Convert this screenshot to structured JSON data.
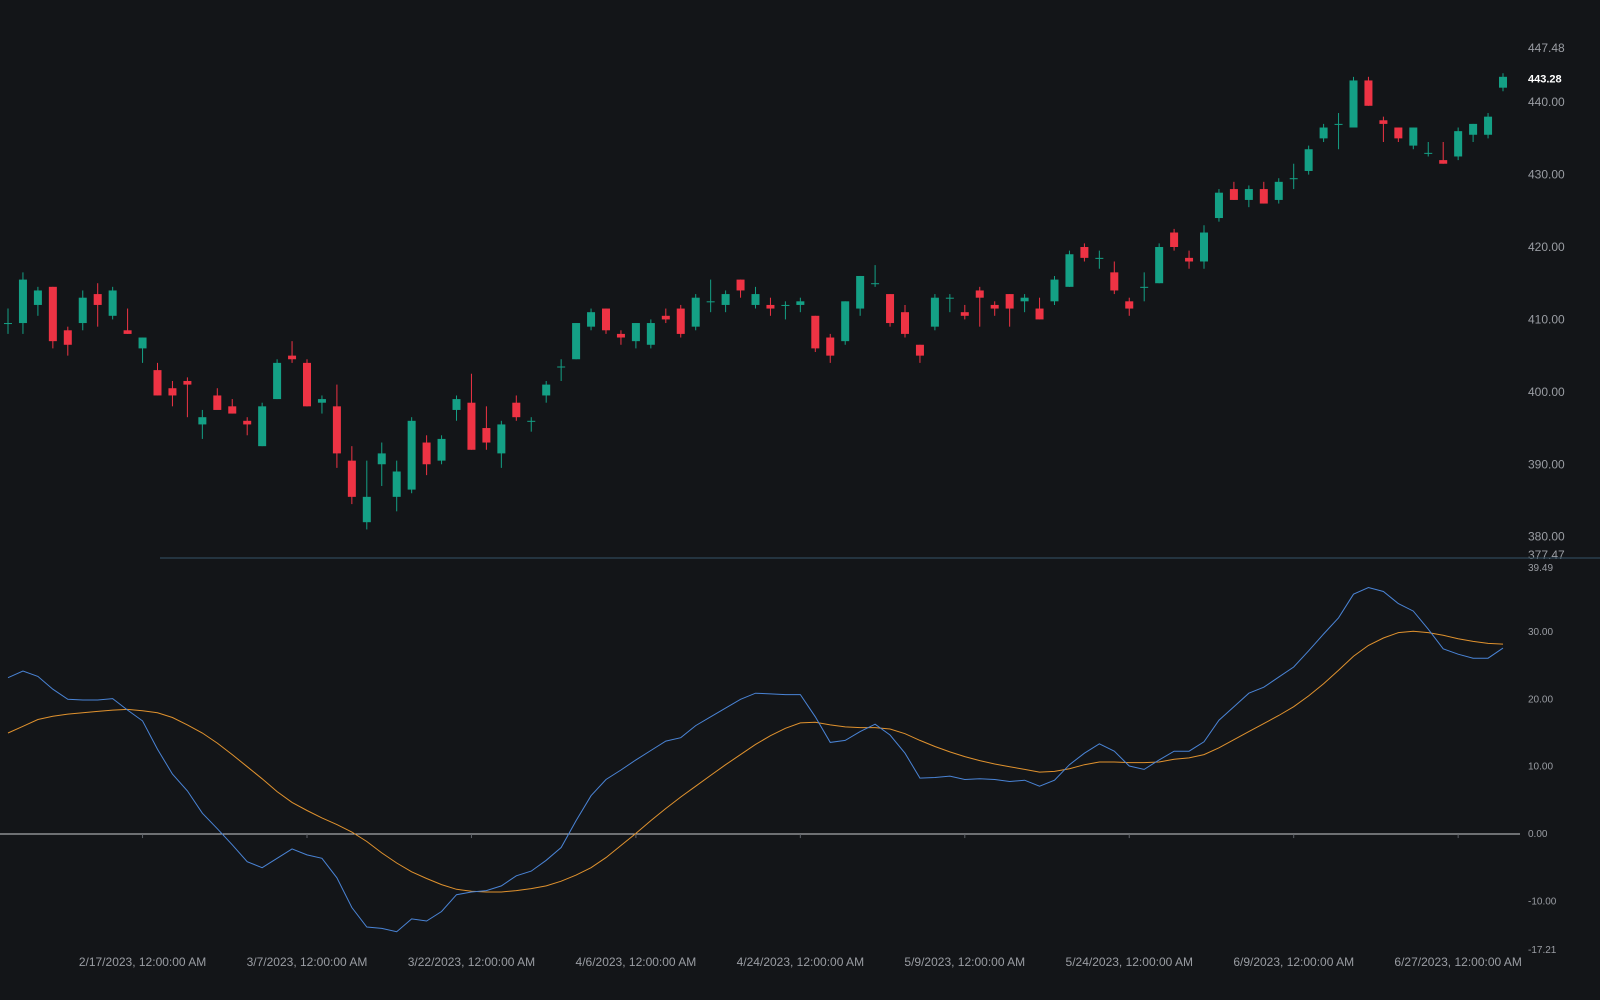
{
  "colors": {
    "background": "#131518",
    "up": "#14a085",
    "down": "#ee3344",
    "macd_line": "#4a84d6",
    "signal_line": "#e0922e",
    "zero_line": "#c9cbce",
    "axis_text": "#9a9da3",
    "last_price_text": "#ffffff",
    "pane_separator": "#2f4858"
  },
  "chart_data": [
    {
      "type": "candlestick",
      "pane": "price",
      "axis_side": "right",
      "ylim": [
        377.47,
        447.48
      ],
      "y_tick_labels": [
        "447.48",
        "440.00",
        "430.00",
        "420.00",
        "410.00",
        "400.00",
        "390.00",
        "380.00",
        "377.47"
      ],
      "y_ticks": [
        447.48,
        440,
        430,
        420,
        410,
        400,
        390,
        380,
        377.47
      ],
      "last_price": 443.28,
      "last_price_label": "443.28",
      "candles": [
        {
          "o": 409.5,
          "h": 411.5,
          "l": 408.0,
          "c": 409.5
        },
        {
          "o": 409.5,
          "h": 416.5,
          "l": 408.0,
          "c": 415.5
        },
        {
          "o": 412.0,
          "h": 414.5,
          "l": 410.5,
          "c": 414.0
        },
        {
          "o": 414.5,
          "h": 414.5,
          "l": 406.0,
          "c": 407.0
        },
        {
          "o": 408.5,
          "h": 409.0,
          "l": 405.0,
          "c": 406.5
        },
        {
          "o": 409.5,
          "h": 414.0,
          "l": 408.5,
          "c": 413.0
        },
        {
          "o": 413.5,
          "h": 415.0,
          "l": 409.0,
          "c": 412.0
        },
        {
          "o": 410.5,
          "h": 414.5,
          "l": 410.0,
          "c": 414.0
        },
        {
          "o": 408.5,
          "h": 411.5,
          "l": 408.0,
          "c": 408.0
        },
        {
          "o": 406.0,
          "h": 407.5,
          "l": 404.0,
          "c": 407.5
        },
        {
          "o": 403.0,
          "h": 404.0,
          "l": 399.5,
          "c": 399.5
        },
        {
          "o": 400.5,
          "h": 401.5,
          "l": 398.0,
          "c": 399.5
        },
        {
          "o": 401.5,
          "h": 402.0,
          "l": 396.5,
          "c": 401.0
        },
        {
          "o": 395.5,
          "h": 397.5,
          "l": 393.5,
          "c": 396.5
        },
        {
          "o": 399.5,
          "h": 400.5,
          "l": 398.0,
          "c": 397.5
        },
        {
          "o": 398.0,
          "h": 399.0,
          "l": 397.0,
          "c": 397.0
        },
        {
          "o": 396.0,
          "h": 396.5,
          "l": 394.0,
          "c": 395.5
        },
        {
          "o": 392.5,
          "h": 398.5,
          "l": 392.5,
          "c": 398.0
        },
        {
          "o": 399.0,
          "h": 404.5,
          "l": 399.0,
          "c": 404.0
        },
        {
          "o": 405.0,
          "h": 407.0,
          "l": 404.0,
          "c": 404.5
        },
        {
          "o": 404.0,
          "h": 404.5,
          "l": 398.0,
          "c": 398.0
        },
        {
          "o": 398.5,
          "h": 399.5,
          "l": 397.0,
          "c": 399.0
        },
        {
          "o": 398.0,
          "h": 401.0,
          "l": 389.5,
          "c": 391.5
        },
        {
          "o": 390.5,
          "h": 392.5,
          "l": 384.5,
          "c": 385.5
        },
        {
          "o": 382.0,
          "h": 390.5,
          "l": 381.0,
          "c": 385.5
        },
        {
          "o": 390.0,
          "h": 393.0,
          "l": 387.0,
          "c": 391.5
        },
        {
          "o": 385.5,
          "h": 390.5,
          "l": 383.5,
          "c": 389.0
        },
        {
          "o": 386.5,
          "h": 396.5,
          "l": 386.0,
          "c": 396.0
        },
        {
          "o": 393.0,
          "h": 394.0,
          "l": 388.5,
          "c": 390.0
        },
        {
          "o": 390.5,
          "h": 394.0,
          "l": 390.0,
          "c": 393.5
        },
        {
          "o": 397.5,
          "h": 399.5,
          "l": 396.0,
          "c": 399.0
        },
        {
          "o": 398.5,
          "h": 402.5,
          "l": 392.0,
          "c": 392.0
        },
        {
          "o": 395.0,
          "h": 398.0,
          "l": 392.0,
          "c": 393.0
        },
        {
          "o": 391.5,
          "h": 396.0,
          "l": 389.5,
          "c": 395.5
        },
        {
          "o": 398.5,
          "h": 399.5,
          "l": 396.0,
          "c": 396.5
        },
        {
          "o": 396.0,
          "h": 396.5,
          "l": 394.5,
          "c": 396.0
        },
        {
          "o": 399.5,
          "h": 401.5,
          "l": 398.5,
          "c": 401.0
        },
        {
          "o": 403.5,
          "h": 404.5,
          "l": 401.5,
          "c": 403.5
        },
        {
          "o": 404.5,
          "h": 409.5,
          "l": 404.5,
          "c": 409.5
        },
        {
          "o": 409.0,
          "h": 411.5,
          "l": 408.5,
          "c": 411.0
        },
        {
          "o": 411.5,
          "h": 411.5,
          "l": 408.0,
          "c": 408.5
        },
        {
          "o": 408.0,
          "h": 408.5,
          "l": 406.5,
          "c": 407.5
        },
        {
          "o": 407.0,
          "h": 409.5,
          "l": 406.0,
          "c": 409.5
        },
        {
          "o": 406.5,
          "h": 410.0,
          "l": 406.0,
          "c": 409.5
        },
        {
          "o": 410.5,
          "h": 411.5,
          "l": 409.5,
          "c": 410.0
        },
        {
          "o": 411.5,
          "h": 412.0,
          "l": 407.5,
          "c": 408.0
        },
        {
          "o": 409.0,
          "h": 413.5,
          "l": 408.5,
          "c": 413.0
        },
        {
          "o": 412.5,
          "h": 415.5,
          "l": 411.0,
          "c": 412.5
        },
        {
          "o": 412.0,
          "h": 414.0,
          "l": 411.0,
          "c": 413.5
        },
        {
          "o": 415.5,
          "h": 415.5,
          "l": 413.0,
          "c": 414.0
        },
        {
          "o": 412.0,
          "h": 414.5,
          "l": 411.5,
          "c": 413.5
        },
        {
          "o": 412.0,
          "h": 413.0,
          "l": 410.5,
          "c": 411.5
        },
        {
          "o": 412.0,
          "h": 412.5,
          "l": 410.0,
          "c": 412.0
        },
        {
          "o": 412.0,
          "h": 413.0,
          "l": 411.0,
          "c": 412.5
        },
        {
          "o": 410.5,
          "h": 410.5,
          "l": 405.5,
          "c": 406.0
        },
        {
          "o": 407.5,
          "h": 408.0,
          "l": 404.0,
          "c": 405.0
        },
        {
          "o": 407.0,
          "h": 412.5,
          "l": 406.5,
          "c": 412.5
        },
        {
          "o": 411.5,
          "h": 416.0,
          "l": 410.5,
          "c": 416.0
        },
        {
          "o": 415.0,
          "h": 417.5,
          "l": 414.5,
          "c": 415.0
        },
        {
          "o": 413.5,
          "h": 413.5,
          "l": 409.0,
          "c": 409.5
        },
        {
          "o": 411.0,
          "h": 412.0,
          "l": 407.5,
          "c": 408.0
        },
        {
          "o": 406.5,
          "h": 406.5,
          "l": 404.0,
          "c": 405.0
        },
        {
          "o": 409.0,
          "h": 413.5,
          "l": 408.5,
          "c": 413.0
        },
        {
          "o": 413.0,
          "h": 413.5,
          "l": 411.0,
          "c": 413.0
        },
        {
          "o": 411.0,
          "h": 412.0,
          "l": 410.0,
          "c": 410.5
        },
        {
          "o": 414.0,
          "h": 414.5,
          "l": 409.0,
          "c": 413.0
        },
        {
          "o": 412.0,
          "h": 412.5,
          "l": 410.5,
          "c": 411.5
        },
        {
          "o": 413.5,
          "h": 413.5,
          "l": 409.0,
          "c": 411.5
        },
        {
          "o": 412.5,
          "h": 413.5,
          "l": 411.0,
          "c": 413.0
        },
        {
          "o": 411.5,
          "h": 413.0,
          "l": 410.0,
          "c": 410.0
        },
        {
          "o": 412.5,
          "h": 416.0,
          "l": 412.0,
          "c": 415.5
        },
        {
          "o": 414.5,
          "h": 419.5,
          "l": 414.5,
          "c": 419.0
        },
        {
          "o": 420.0,
          "h": 420.5,
          "l": 418.0,
          "c": 418.5
        },
        {
          "o": 418.5,
          "h": 419.5,
          "l": 417.0,
          "c": 418.5
        },
        {
          "o": 416.5,
          "h": 418.0,
          "l": 413.5,
          "c": 414.0
        },
        {
          "o": 412.5,
          "h": 413.0,
          "l": 410.5,
          "c": 411.5
        },
        {
          "o": 414.5,
          "h": 416.5,
          "l": 412.5,
          "c": 414.5
        },
        {
          "o": 415.0,
          "h": 420.5,
          "l": 415.0,
          "c": 420.0
        },
        {
          "o": 422.0,
          "h": 422.5,
          "l": 419.5,
          "c": 420.0
        },
        {
          "o": 418.5,
          "h": 419.5,
          "l": 417.0,
          "c": 418.0
        },
        {
          "o": 418.0,
          "h": 423.0,
          "l": 417.0,
          "c": 422.0
        },
        {
          "o": 424.0,
          "h": 428.0,
          "l": 423.5,
          "c": 427.5
        },
        {
          "o": 428.0,
          "h": 429.0,
          "l": 426.5,
          "c": 426.5
        },
        {
          "o": 426.5,
          "h": 428.5,
          "l": 425.5,
          "c": 428.0
        },
        {
          "o": 428.0,
          "h": 429.0,
          "l": 426.0,
          "c": 426.0
        },
        {
          "o": 426.5,
          "h": 429.5,
          "l": 426.0,
          "c": 429.0
        },
        {
          "o": 429.5,
          "h": 431.5,
          "l": 428.0,
          "c": 429.5
        },
        {
          "o": 430.5,
          "h": 434.0,
          "l": 430.0,
          "c": 433.5
        },
        {
          "o": 435.0,
          "h": 437.0,
          "l": 434.5,
          "c": 436.5
        },
        {
          "o": 437.0,
          "h": 438.5,
          "l": 433.5,
          "c": 437.0
        },
        {
          "o": 436.5,
          "h": 443.5,
          "l": 436.5,
          "c": 443.0
        },
        {
          "o": 443.0,
          "h": 443.5,
          "l": 439.5,
          "c": 439.5
        },
        {
          "o": 437.5,
          "h": 438.0,
          "l": 434.5,
          "c": 437.0
        },
        {
          "o": 436.5,
          "h": 436.5,
          "l": 434.5,
          "c": 435.0
        },
        {
          "o": 434.0,
          "h": 436.5,
          "l": 433.5,
          "c": 436.5
        },
        {
          "o": 433.0,
          "h": 434.5,
          "l": 432.5,
          "c": 433.0
        },
        {
          "o": 432.0,
          "h": 434.5,
          "l": 431.5,
          "c": 431.5
        },
        {
          "o": 432.5,
          "h": 436.5,
          "l": 432.0,
          "c": 436.0
        },
        {
          "o": 435.5,
          "h": 437.0,
          "l": 434.5,
          "c": 437.0
        },
        {
          "o": 435.5,
          "h": 438.5,
          "l": 435.0,
          "c": 438.0
        },
        {
          "o": 442.0,
          "h": 444.0,
          "l": 441.5,
          "c": 443.5
        }
      ]
    },
    {
      "type": "line",
      "pane": "indicator",
      "axis_side": "right",
      "ylim": [
        -17.21,
        39.49
      ],
      "y_tick_labels": [
        "39.49",
        "30.00",
        "20.00",
        "10.00",
        "0.00",
        "-10.00",
        "-17.21"
      ],
      "y_ticks": [
        39.49,
        30,
        20,
        10,
        0,
        -10,
        -17.21
      ],
      "zero_line": 0,
      "x_tick_labels": [
        "2/17/2023, 12:00:00 AM",
        "3/7/2023, 12:00:00 AM",
        "3/22/2023, 12:00:00 AM",
        "4/6/2023, 12:00:00 AM",
        "4/24/2023, 12:00:00 AM",
        "5/9/2023, 12:00:00 AM",
        "5/24/2023, 12:00:00 AM",
        "6/9/2023, 12:00:00 AM",
        "6/27/2023, 12:00:00 AM"
      ],
      "x_tick_bars": [
        9,
        20,
        31,
        42,
        53,
        64,
        75,
        86,
        97
      ],
      "series": [
        {
          "role": "fast",
          "color": "#4a84d6",
          "values": [
            23.2,
            24.2,
            23.4,
            21.5,
            20.0,
            19.9,
            19.9,
            20.1,
            18.4,
            16.8,
            12.6,
            8.9,
            6.4,
            3.1,
            0.8,
            -1.6,
            -4.1,
            -5.0,
            -3.6,
            -2.2,
            -3.1,
            -3.6,
            -6.5,
            -10.9,
            -13.8,
            -14.0,
            -14.5,
            -12.6,
            -12.9,
            -11.5,
            -9.0,
            -8.6,
            -8.4,
            -7.7,
            -6.2,
            -5.5,
            -3.9,
            -2.0,
            2.0,
            5.7,
            8.1,
            9.5,
            11.0,
            12.4,
            13.8,
            14.3,
            16.1,
            17.4,
            18.7,
            20.0,
            20.9,
            20.8,
            20.7,
            20.7,
            17.4,
            13.6,
            13.9,
            15.2,
            16.3,
            14.7,
            12.0,
            8.3,
            8.4,
            8.6,
            8.1,
            8.2,
            8.1,
            7.8,
            8.0,
            7.1,
            8.0,
            10.3,
            12.0,
            13.4,
            12.3,
            10.1,
            9.6,
            11.0,
            12.3,
            12.3,
            13.7,
            16.9,
            18.9,
            20.9,
            21.8,
            23.3,
            24.8,
            27.2,
            29.7,
            32.1,
            35.6,
            36.6,
            36.0,
            34.2,
            33.1,
            30.4,
            27.5,
            26.7,
            26.1,
            26.1,
            27.6
          ]
        },
        {
          "role": "signal",
          "color": "#e0922e",
          "values": [
            15.0,
            16.0,
            17.0,
            17.5,
            17.8,
            18.0,
            18.2,
            18.4,
            18.5,
            18.3,
            18.0,
            17.3,
            16.2,
            15.0,
            13.5,
            11.8,
            10.0,
            8.2,
            6.3,
            4.7,
            3.5,
            2.4,
            1.4,
            0.3,
            -1.1,
            -2.8,
            -4.3,
            -5.6,
            -6.6,
            -7.5,
            -8.2,
            -8.5,
            -8.6,
            -8.6,
            -8.4,
            -8.1,
            -7.7,
            -7.0,
            -6.1,
            -5.0,
            -3.5,
            -1.7,
            0.1,
            2.0,
            3.8,
            5.5,
            7.1,
            8.7,
            10.3,
            11.8,
            13.3,
            14.6,
            15.7,
            16.5,
            16.6,
            16.2,
            15.9,
            15.8,
            15.8,
            15.6,
            14.9,
            13.9,
            13.0,
            12.2,
            11.5,
            10.9,
            10.4,
            10.0,
            9.6,
            9.2,
            9.3,
            9.7,
            10.3,
            10.7,
            10.7,
            10.6,
            10.6,
            10.7,
            11.1,
            11.3,
            11.8,
            12.8,
            14.0,
            15.2,
            16.4,
            17.6,
            18.9,
            20.5,
            22.3,
            24.3,
            26.4,
            28.0,
            29.1,
            29.9,
            30.1,
            29.9,
            29.5,
            29.0,
            28.6,
            28.3,
            28.2
          ]
        }
      ]
    }
  ]
}
